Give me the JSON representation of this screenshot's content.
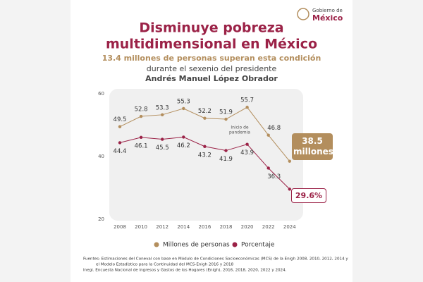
{
  "logo": {
    "line1": "Gobierno de",
    "line2": "México"
  },
  "chart_data": {
    "type": "line",
    "title": [
      "Disminuye pobreza",
      "multidimensional en México"
    ],
    "subtitle": "13.4 millones de personas superan esta condición",
    "subtitle2": [
      "durante el sexenio del presidente",
      "Andrés Manuel López Obrador"
    ],
    "categories": [
      "2008",
      "2010",
      "2012",
      "2014",
      "2016",
      "2018",
      "2020",
      "2022",
      "2024"
    ],
    "series": [
      {
        "name": "Millones de personas",
        "color": "#b38e5d",
        "values": [
          49.5,
          52.8,
          53.3,
          55.3,
          52.2,
          51.9,
          55.7,
          46.8,
          38.5
        ],
        "value_labels": [
          "49.5",
          "52.8",
          "53.3",
          "55.3",
          "52.2",
          "51.9",
          "55.7",
          "46.8",
          "38.5 millones"
        ]
      },
      {
        "name": "Porcentaje",
        "color": "#9b2247",
        "values": [
          44.4,
          46.1,
          45.5,
          46.2,
          43.2,
          41.9,
          43.9,
          36.3,
          29.6
        ],
        "value_labels": [
          "44.4",
          "46.1",
          "45.5",
          "46.2",
          "43.2",
          "41.9",
          "43.9",
          "36.3",
          "29.6%"
        ]
      }
    ],
    "ylim": [
      20,
      60
    ],
    "yticks": [
      20,
      40,
      60
    ],
    "annotation": [
      "Inicio de",
      "pandemia"
    ],
    "source": [
      "Fuentes: Estimaciones del Coneval con base en Módulo de Condiciones Socioeconómicas (MCS) de la Enigh 2008, 2010, 2012, 2014 y",
      "el Modelo Estadístico para la Continuidad del MCS-Enigh 2016 y 2018",
      "Inegi. Encuesta Nacional de Ingresos y Gastos de los Hogares (Enigh), 2016, 2018, 2020, 2022 y 2024."
    ]
  }
}
